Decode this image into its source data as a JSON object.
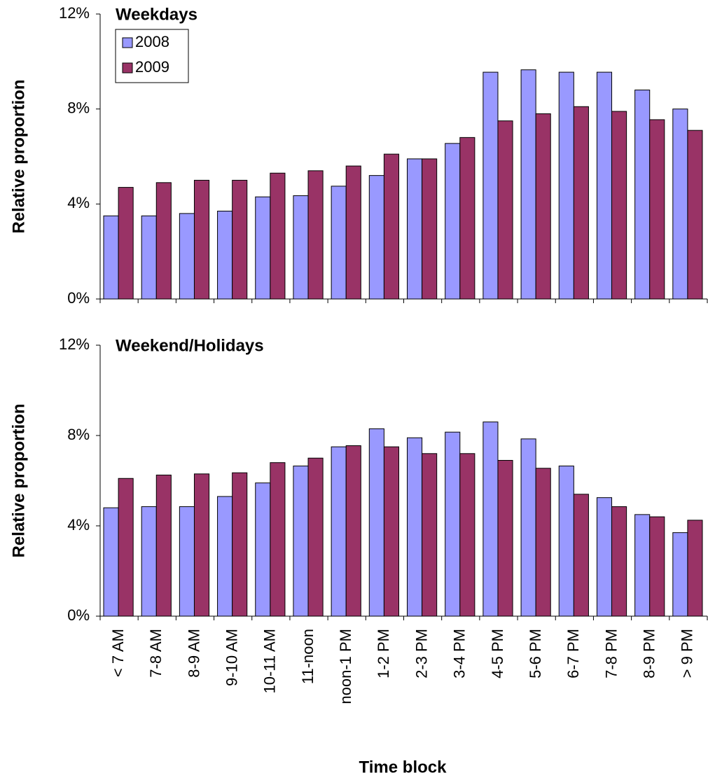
{
  "chart_data": [
    {
      "type": "bar",
      "title": "Weekdays",
      "ylabel": "Relative proportion",
      "legend": "upper left",
      "ylim": [
        0,
        12
      ],
      "yticks": [
        {
          "value": 0,
          "label": "0%"
        },
        {
          "value": 4,
          "label": "4%"
        },
        {
          "value": 8,
          "label": "8%"
        },
        {
          "value": 12,
          "label": "12%"
        }
      ],
      "series": [
        {
          "name": "2008",
          "color": "#9999ff",
          "values": [
            3.5,
            3.5,
            3.6,
            3.7,
            4.3,
            4.35,
            4.75,
            5.2,
            5.9,
            6.55,
            9.55,
            9.65,
            9.55,
            9.55,
            8.8,
            8.0
          ]
        },
        {
          "name": "2009",
          "color": "#993366",
          "values": [
            4.7,
            4.9,
            5.0,
            5.0,
            5.3,
            5.4,
            5.6,
            6.1,
            5.9,
            6.8,
            7.5,
            7.8,
            8.1,
            7.9,
            7.55,
            7.1
          ]
        }
      ]
    },
    {
      "type": "bar",
      "title": "Weekend/Holidays",
      "ylabel": "Relative proportion",
      "xlabel": "Time block",
      "categories": [
        "< 7 AM",
        "7-8 AM",
        "8-9 AM",
        "9-10 AM",
        "10-11 AM",
        "11-noon",
        "noon-1 PM",
        "1-2 PM",
        "2-3 PM",
        "3-4 PM",
        "4-5 PM",
        "5-6 PM",
        "6-7 PM",
        "7-8 PM",
        "8-9 PM",
        "> 9 PM"
      ],
      "ylim": [
        0,
        12
      ],
      "yticks": [
        {
          "value": 0,
          "label": "0%"
        },
        {
          "value": 4,
          "label": "4%"
        },
        {
          "value": 8,
          "label": "8%"
        },
        {
          "value": 12,
          "label": "12%"
        }
      ],
      "series": [
        {
          "color": "#9999ff",
          "values": [
            4.8,
            4.85,
            4.85,
            5.3,
            5.9,
            6.65,
            7.5,
            8.3,
            7.9,
            8.15,
            8.6,
            7.85,
            6.65,
            5.25,
            4.5,
            3.7
          ]
        },
        {
          "color": "#993366",
          "values": [
            6.1,
            6.25,
            6.3,
            6.35,
            6.8,
            7.0,
            7.55,
            7.5,
            7.2,
            7.2,
            6.9,
            6.55,
            5.4,
            4.85,
            4.4,
            4.25
          ]
        }
      ]
    }
  ]
}
